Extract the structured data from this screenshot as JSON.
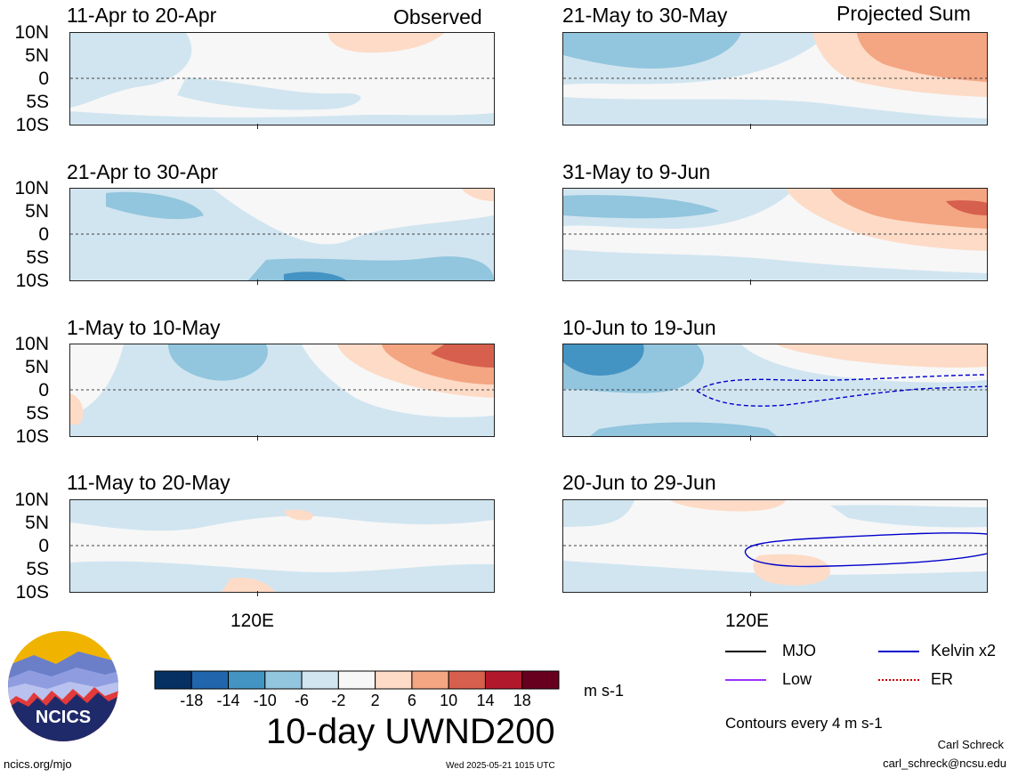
{
  "headers": {
    "left": "Observed",
    "right": "Projected Sum"
  },
  "lat_labels": [
    "10N",
    "5N",
    "0",
    "5S",
    "10S"
  ],
  "lon_label": "120E",
  "panels_left": [
    {
      "period": "11-Apr to 20-Apr"
    },
    {
      "period": "21-Apr to 30-Apr"
    },
    {
      "period": "1-May to 10-May"
    },
    {
      "period": "11-May to 20-May"
    }
  ],
  "panels_right": [
    {
      "period": "21-May to 30-May"
    },
    {
      "period": "31-May to 9-Jun"
    },
    {
      "period": "10-Jun to 19-Jun"
    },
    {
      "period": "20-Jun to 29-Jun"
    }
  ],
  "chart_data": {
    "type": "heatmap",
    "variable": "10-day UWND200",
    "units": "m s-1",
    "lat_range": [
      "10S",
      "10N"
    ],
    "colorbar": {
      "ticks": [
        -18,
        -14,
        -10,
        -6,
        -2,
        2,
        6,
        10,
        14,
        18
      ],
      "colors": [
        "#053061",
        "#2166ac",
        "#4393c3",
        "#92c5de",
        "#d1e5f0",
        "#f7f7f7",
        "#fddbc7",
        "#f4a582",
        "#d6604d",
        "#b2182b",
        "#67001f"
      ]
    },
    "legend": {
      "items": [
        {
          "label": "MJO",
          "color": "#000000"
        },
        {
          "label": "Kelvin x2",
          "color": "#0000cc"
        },
        {
          "label": "Low",
          "color": "#9933ff"
        },
        {
          "label": "ER",
          "color": "#cc0000"
        }
      ],
      "contour_note": "Contours every 4 m s-1"
    }
  },
  "footer": {
    "org": "NCICS",
    "url": "ncics.org/mjo",
    "timestamp": "Wed 2025-05-21 1015 UTC",
    "author": "Carl Schreck",
    "email": "carl_schreck@ncsu.edu"
  },
  "colors": {
    "ncics_navy": "#1f2a6b",
    "ncics_gold": "#f0b400"
  }
}
